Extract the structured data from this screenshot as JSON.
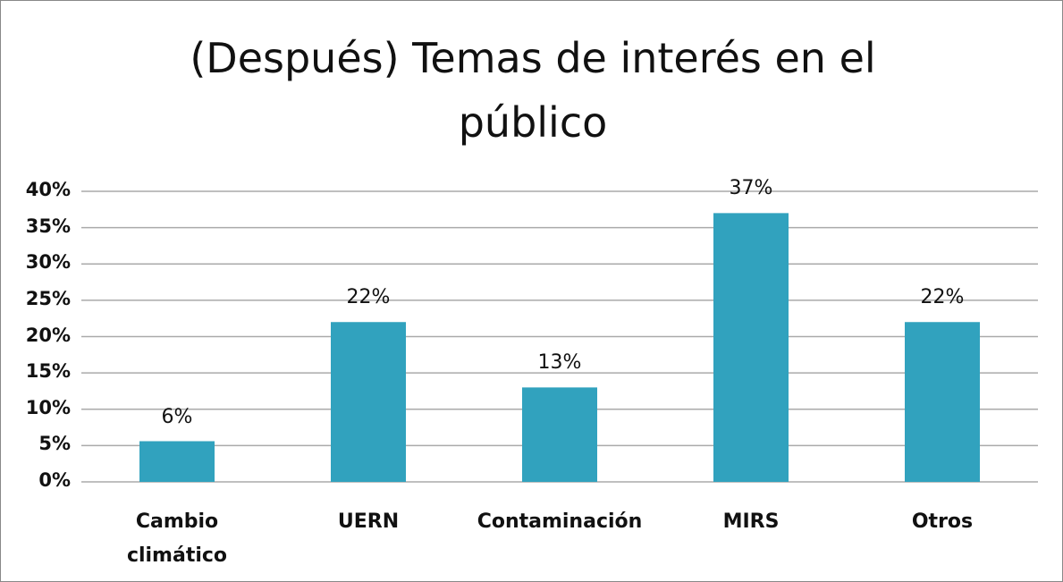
{
  "chart_data": {
    "type": "bar",
    "title": "(Después) Temas de interés en el público",
    "categories": [
      "Cambio climático",
      "UERN",
      "Contaminación",
      "MIRS",
      "Otros"
    ],
    "values": [
      5.6,
      22,
      13,
      37,
      22
    ],
    "value_labels": [
      "6%",
      "22%",
      "13%",
      "37%",
      "22%"
    ],
    "color": "#31a2be",
    "ylim": [
      0,
      40
    ],
    "yticks": [
      {
        "value": 0,
        "label": "0%"
      },
      {
        "value": 5,
        "label": "5%"
      },
      {
        "value": 10,
        "label": "10%"
      },
      {
        "value": 15,
        "label": "15%"
      },
      {
        "value": 20,
        "label": "20%"
      },
      {
        "value": 25,
        "label": "25%"
      },
      {
        "value": 30,
        "label": "30%"
      },
      {
        "value": 35,
        "label": "35%"
      },
      {
        "value": 40,
        "label": "40%"
      }
    ],
    "grid": true
  }
}
